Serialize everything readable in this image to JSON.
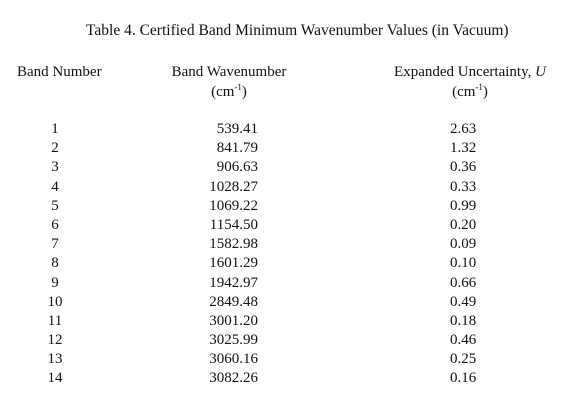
{
  "caption": "Table 4.  Certified Band Minimum Wavenumber Values (in Vacuum)",
  "columns": {
    "band_number": "Band Number",
    "band_wavenumber": "Band Wavenumber",
    "wavenumber_unit_base": "(cm",
    "wavenumber_unit_exp": "-1",
    "wavenumber_unit_close": ")",
    "expanded_uncertainty": "Expanded Uncertainty,",
    "uncertainty_symbol": "U",
    "uncertainty_unit_base": "(cm",
    "uncertainty_unit_exp": "-1",
    "uncertainty_unit_close": ")"
  },
  "rows": [
    {
      "band": "1",
      "wavenumber": "539.41",
      "uncertainty": "2.63"
    },
    {
      "band": "2",
      "wavenumber": "841.79",
      "uncertainty": "1.32"
    },
    {
      "band": "3",
      "wavenumber": "906.63",
      "uncertainty": "0.36"
    },
    {
      "band": "4",
      "wavenumber": "1028.27",
      "uncertainty": "0.33"
    },
    {
      "band": "5",
      "wavenumber": "1069.22",
      "uncertainty": "0.99"
    },
    {
      "band": "6",
      "wavenumber": "1154.50",
      "uncertainty": "0.20"
    },
    {
      "band": "7",
      "wavenumber": "1582.98",
      "uncertainty": "0.09"
    },
    {
      "band": "8",
      "wavenumber": "1601.29",
      "uncertainty": "0.10"
    },
    {
      "band": "9",
      "wavenumber": "1942.97",
      "uncertainty": "0.66"
    },
    {
      "band": "10",
      "wavenumber": "2849.48",
      "uncertainty": "0.49"
    },
    {
      "band": "11",
      "wavenumber": "3001.20",
      "uncertainty": "0.18"
    },
    {
      "band": "12",
      "wavenumber": "3025.99",
      "uncertainty": "0.46"
    },
    {
      "band": "13",
      "wavenumber": "3060.16",
      "uncertainty": "0.25"
    },
    {
      "band": "14",
      "wavenumber": "3082.26",
      "uncertainty": "0.16"
    }
  ]
}
